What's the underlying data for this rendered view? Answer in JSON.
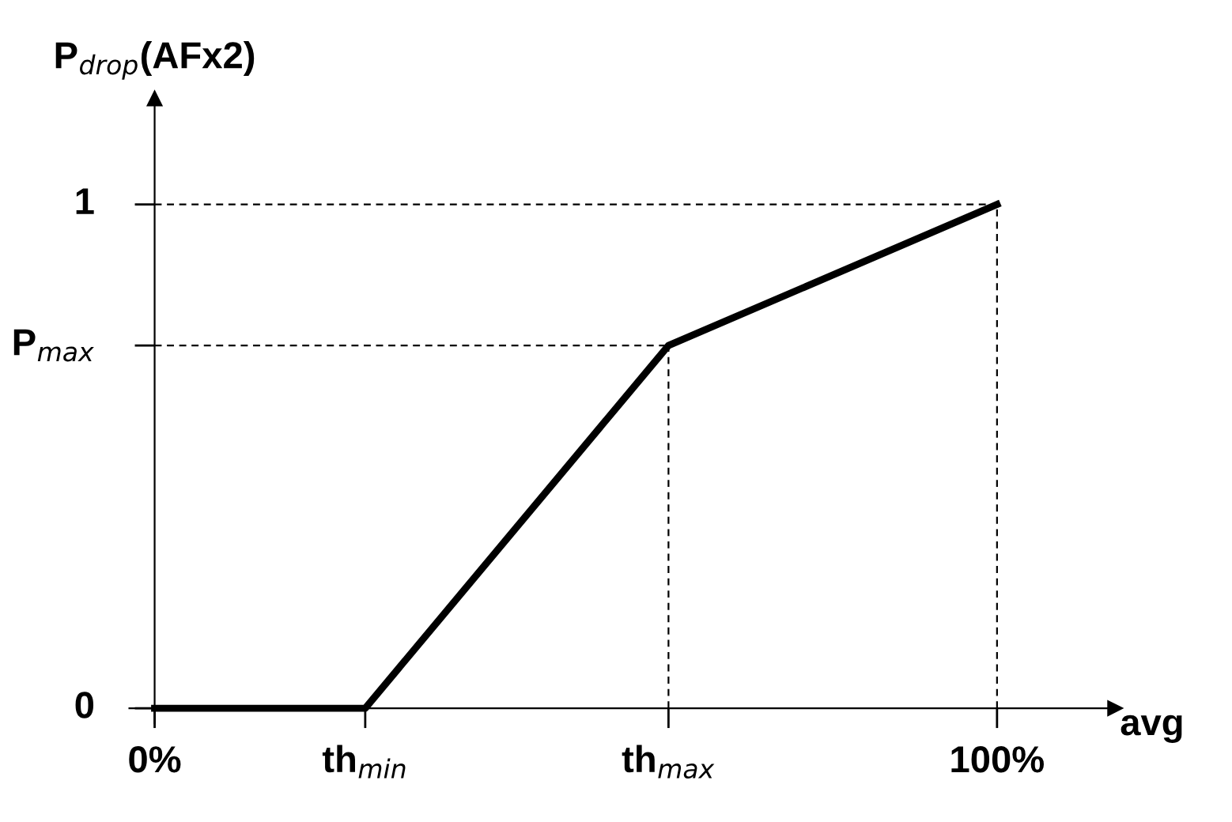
{
  "chart_data": {
    "type": "line",
    "ylabel": "P$_{drop}$(AFx2)",
    "xlabel": "avg",
    "x": [
      0,
      25,
      61,
      100
    ],
    "series": [
      {
        "color": "#000000",
        "values": [
          0,
          0,
          0.72,
          1
        ]
      }
    ],
    "xlim": [
      -3,
      114
    ],
    "ylim": [
      -0.03,
      1.21
    ],
    "xticks": [
      {
        "value": 0,
        "label": "0%"
      },
      {
        "value": 25,
        "label": "th$_{min}$"
      },
      {
        "value": 61,
        "label": "th$_{max}$"
      },
      {
        "value": 100,
        "label": "100%"
      }
    ],
    "yticks": [
      0,
      {
        "value": 0.72,
        "label": "P$_{max}$"
      },
      1
    ],
    "ref_lines": [
      {
        "axis": "y",
        "value": 1,
        "line_style": "dashed",
        "color": "#000000"
      },
      {
        "axis": "y",
        "value": 0.72,
        "line_style": "dashed",
        "color": "#000000"
      },
      {
        "axis": "x",
        "value": 61,
        "line_style": "dashed",
        "color": "#000000"
      },
      {
        "axis": "x",
        "value": 100,
        "line_style": "dashed",
        "color": "#000000"
      }
    ],
    "grid": false,
    "legend": false,
    "marker": "none",
    "line_style": "solid"
  }
}
